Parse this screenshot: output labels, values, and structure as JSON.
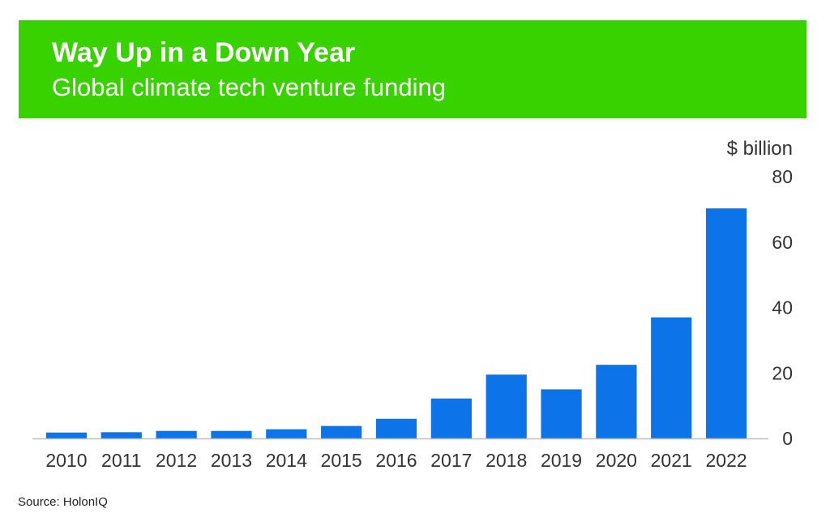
{
  "header": {
    "title": "Way Up in a Down Year",
    "subtitle": "Global climate tech venture funding"
  },
  "source": "Source: HolonIQ",
  "colors": {
    "header_bg": "#38d200",
    "bar": "#0c73e8",
    "axis": "#bdbdbd"
  },
  "chart_data": {
    "type": "bar",
    "title": "Way Up in a Down Year",
    "subtitle": "Global climate tech venture funding",
    "ylabel": "$ billion",
    "xlabel": "",
    "categories": [
      "2010",
      "2011",
      "2012",
      "2013",
      "2014",
      "2015",
      "2016",
      "2017",
      "2018",
      "2019",
      "2020",
      "2021",
      "2022"
    ],
    "values": [
      1.8,
      1.9,
      2.3,
      2.3,
      2.8,
      3.8,
      6.0,
      12.2,
      19.5,
      15.0,
      22.5,
      37.0,
      70.3
    ],
    "ylim": [
      0,
      80
    ],
    "yticks": [
      0,
      20,
      40,
      60,
      80
    ],
    "y_axis_side": "right",
    "grid": false,
    "legend": "none"
  }
}
